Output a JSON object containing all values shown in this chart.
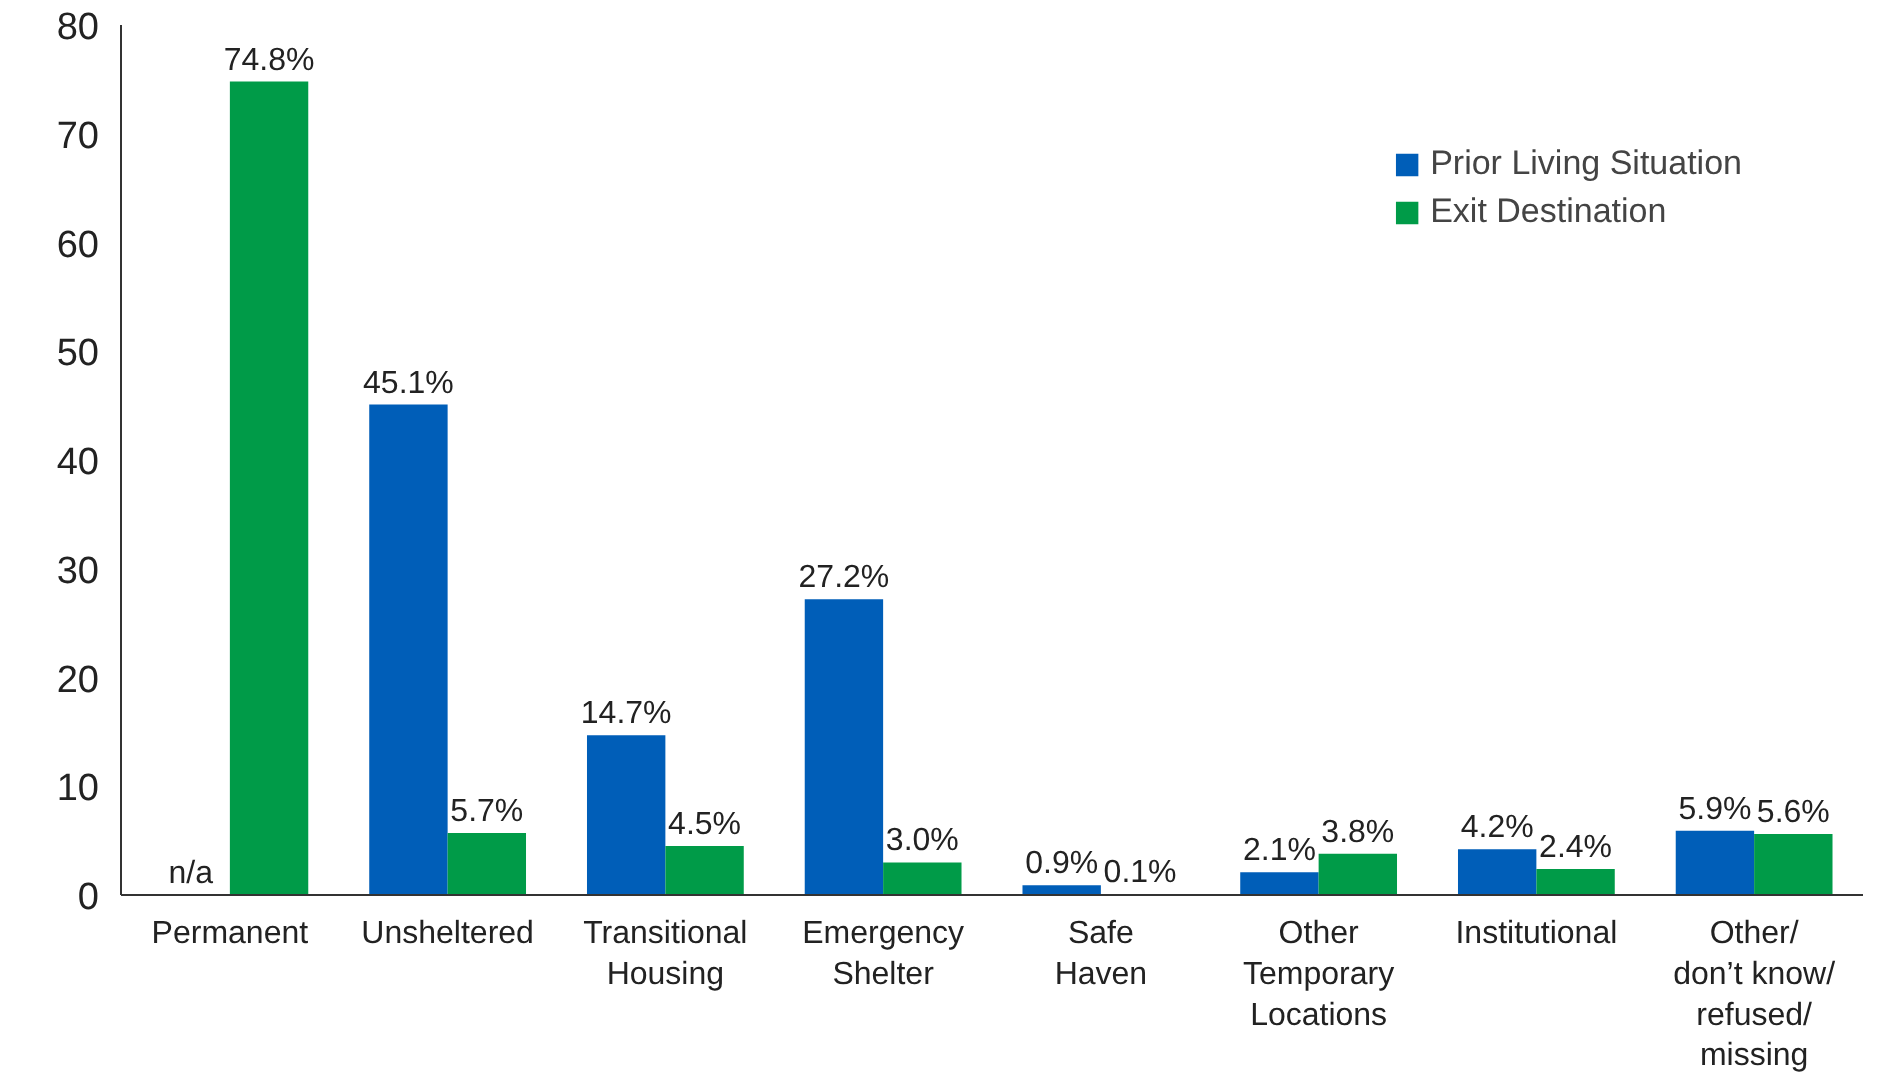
{
  "chart_data": {
    "type": "bar",
    "categories": [
      "Permanent",
      "Unsheltered",
      "Transitional\nHousing",
      "Emergency\nShelter",
      "Safe\nHaven",
      "Other\nTemporary\nLocations",
      "Institutional",
      "Other/\ndon’t know/\nrefused/\nmissing"
    ],
    "series": [
      {
        "name": "Prior Living Situation",
        "color": "#005eb8",
        "values": [
          null,
          45.1,
          14.7,
          27.2,
          0.9,
          2.1,
          4.2,
          5.9
        ],
        "value_labels": [
          "n/a",
          "45.1%",
          "14.7%",
          "27.2%",
          "0.9%",
          "2.1%",
          "4.2%",
          "5.9%"
        ]
      },
      {
        "name": "Exit Destination",
        "color": "#009b48",
        "values": [
          74.8,
          5.7,
          4.5,
          3.0,
          0.1,
          3.8,
          2.4,
          5.6
        ],
        "value_labels": [
          "74.8%",
          "5.7%",
          "4.5%",
          "3.0%",
          "0.1%",
          "3.8%",
          "2.4%",
          "5.6%"
        ]
      }
    ],
    "ylim": [
      0,
      80
    ],
    "yticks": [
      0,
      10,
      20,
      30,
      40,
      50,
      60,
      70,
      80
    ],
    "grid": false,
    "legend": "top right"
  }
}
